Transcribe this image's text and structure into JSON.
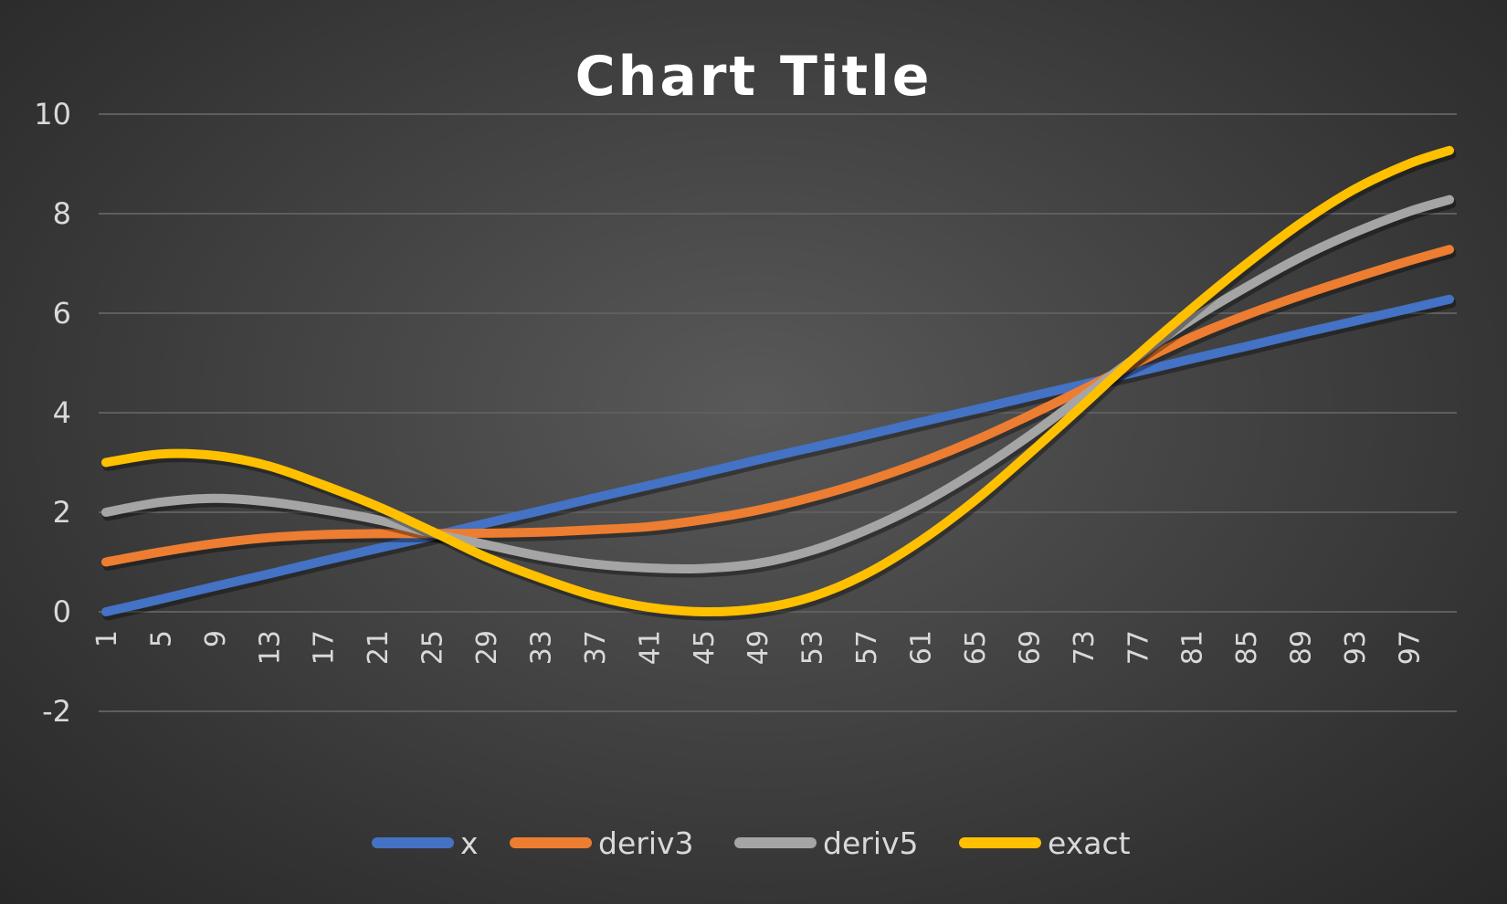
{
  "chart_data": {
    "type": "line",
    "title": "Chart Title",
    "xlabel": "",
    "ylabel": "",
    "x_range": [
      1,
      100
    ],
    "x_tick_labels": [
      "1",
      "5",
      "9",
      "13",
      "17",
      "21",
      "25",
      "29",
      "33",
      "37",
      "41",
      "45",
      "49",
      "53",
      "57",
      "61",
      "65",
      "69",
      "73",
      "77",
      "81",
      "85",
      "89",
      "93",
      "97"
    ],
    "ylim": [
      -2,
      10
    ],
    "y_ticks": [
      "-2",
      "0",
      "2",
      "4",
      "6",
      "8",
      "10"
    ],
    "grid": true,
    "legend_position": "bottom",
    "series": [
      {
        "name": "x",
        "color": "#4472C4",
        "x": [
          1,
          5,
          9,
          13,
          17,
          21,
          25,
          29,
          33,
          37,
          41,
          45,
          49,
          53,
          57,
          61,
          65,
          69,
          73,
          77,
          81,
          85,
          89,
          93,
          97,
          100
        ],
        "values": [
          0.0,
          0.25,
          0.51,
          0.76,
          1.02,
          1.27,
          1.52,
          1.78,
          2.03,
          2.29,
          2.54,
          2.79,
          3.05,
          3.3,
          3.55,
          3.81,
          4.06,
          4.32,
          4.57,
          4.82,
          5.08,
          5.33,
          5.59,
          5.84,
          6.09,
          6.28
        ]
      },
      {
        "name": "deriv3",
        "color": "#ED7D31",
        "x": [
          1,
          5,
          9,
          13,
          17,
          21,
          25,
          29,
          33,
          37,
          41,
          45,
          49,
          53,
          57,
          61,
          65,
          69,
          73,
          77,
          81,
          85,
          89,
          93,
          97,
          100
        ],
        "values": [
          1.0,
          1.2,
          1.37,
          1.49,
          1.55,
          1.57,
          1.57,
          1.58,
          1.6,
          1.65,
          1.71,
          1.85,
          2.04,
          2.3,
          2.62,
          3.0,
          3.44,
          3.94,
          4.47,
          5.01,
          5.52,
          5.96,
          6.35,
          6.71,
          7.05,
          7.28
        ]
      },
      {
        "name": "deriv5",
        "color": "#A5A5A5",
        "x": [
          1,
          5,
          9,
          13,
          17,
          21,
          25,
          29,
          33,
          37,
          41,
          45,
          49,
          53,
          57,
          61,
          65,
          69,
          73,
          77,
          81,
          85,
          89,
          93,
          97,
          100
        ],
        "values": [
          2.0,
          2.2,
          2.28,
          2.21,
          2.05,
          1.85,
          1.58,
          1.35,
          1.12,
          0.96,
          0.88,
          0.87,
          0.97,
          1.23,
          1.64,
          2.16,
          2.8,
          3.53,
          4.33,
          5.13,
          5.87,
          6.52,
          7.12,
          7.62,
          8.04,
          8.28
        ]
      },
      {
        "name": "exact",
        "color": "#FFC000",
        "x": [
          1,
          5,
          9,
          13,
          17,
          21,
          25,
          29,
          33,
          37,
          41,
          45,
          49,
          53,
          57,
          61,
          65,
          69,
          73,
          77,
          81,
          85,
          89,
          93,
          97,
          100
        ],
        "values": [
          3.0,
          3.17,
          3.14,
          2.93,
          2.55,
          2.12,
          1.62,
          1.1,
          0.68,
          0.32,
          0.09,
          0.0,
          0.06,
          0.3,
          0.76,
          1.42,
          2.23,
          3.17,
          4.15,
          5.15,
          6.09,
          6.98,
          7.8,
          8.49,
          9.0,
          9.27
        ]
      }
    ]
  }
}
